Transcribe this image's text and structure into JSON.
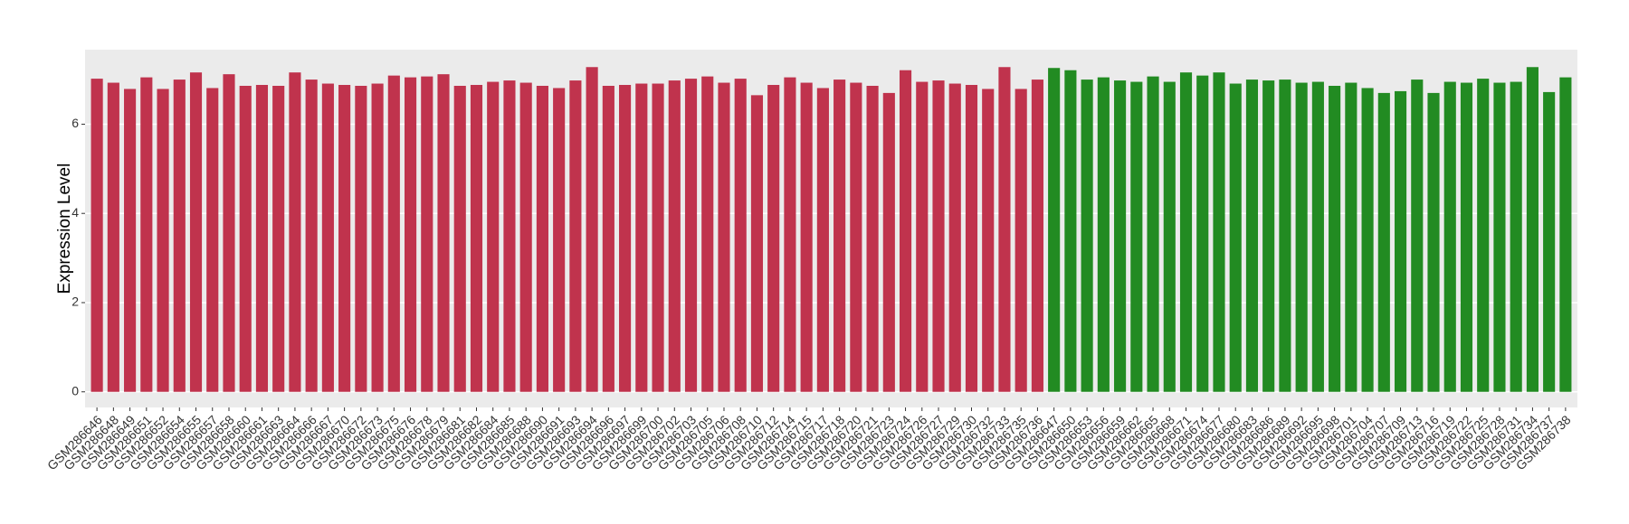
{
  "chart_data": {
    "type": "bar",
    "ylabel": "Expression Level",
    "categories": [
      "GSM286646",
      "GSM286648",
      "GSM286649",
      "GSM286651",
      "GSM286652",
      "GSM286654",
      "GSM286655",
      "GSM286657",
      "GSM286658",
      "GSM286660",
      "GSM286661",
      "GSM286663",
      "GSM286664",
      "GSM286666",
      "GSM286667",
      "GSM286670",
      "GSM286672",
      "GSM286673",
      "GSM286675",
      "GSM286676",
      "GSM286678",
      "GSM286679",
      "GSM286681",
      "GSM286682",
      "GSM286684",
      "GSM286685",
      "GSM286688",
      "GSM286690",
      "GSM286691",
      "GSM286693",
      "GSM286694",
      "GSM286696",
      "GSM286697",
      "GSM286699",
      "GSM286700",
      "GSM286702",
      "GSM286703",
      "GSM286705",
      "GSM286706",
      "GSM286708",
      "GSM286710",
      "GSM286712",
      "GSM286714",
      "GSM286715",
      "GSM286717",
      "GSM286718",
      "GSM286720",
      "GSM286721",
      "GSM286723",
      "GSM286724",
      "GSM286726",
      "GSM286727",
      "GSM286729",
      "GSM286730",
      "GSM286732",
      "GSM286733",
      "GSM286735",
      "GSM286736",
      "GSM286647",
      "GSM286650",
      "GSM286653",
      "GSM286656",
      "GSM286659",
      "GSM286662",
      "GSM286665",
      "GSM286668",
      "GSM286671",
      "GSM286674",
      "GSM286677",
      "GSM286680",
      "GSM286683",
      "GSM286686",
      "GSM286689",
      "GSM286692",
      "GSM286695",
      "GSM286698",
      "GSM286701",
      "GSM286704",
      "GSM286707",
      "GSM286709",
      "GSM286713",
      "GSM286716",
      "GSM286719",
      "GSM286722",
      "GSM286725",
      "GSM286728",
      "GSM286731",
      "GSM286734",
      "GSM286737",
      "GSM286738"
    ],
    "values": [
      7.02,
      6.93,
      6.79,
      7.05,
      6.79,
      7.0,
      7.16,
      6.81,
      7.12,
      6.86,
      6.88,
      6.86,
      7.16,
      7.0,
      6.91,
      6.88,
      6.86,
      6.91,
      7.09,
      7.05,
      7.07,
      7.12,
      6.86,
      6.88,
      6.95,
      6.98,
      6.93,
      6.86,
      6.81,
      6.98,
      7.28,
      6.86,
      6.88,
      6.91,
      6.91,
      6.98,
      7.02,
      7.07,
      6.93,
      7.02,
      6.65,
      6.88,
      7.05,
      6.93,
      6.81,
      7.0,
      6.93,
      6.86,
      6.7,
      7.21,
      6.95,
      6.98,
      6.91,
      6.88,
      6.79,
      7.28,
      6.79,
      7.0,
      7.26,
      7.21,
      7.0,
      7.05,
      6.98,
      6.95,
      7.07,
      6.95,
      7.16,
      7.09,
      7.16,
      6.91,
      7.0,
      6.98,
      7.0,
      6.93,
      6.95,
      6.86,
      6.93,
      6.81,
      6.7,
      6.74,
      7.0,
      6.7,
      6.95,
      6.93,
      7.02,
      6.93,
      6.95,
      7.28,
      6.72,
      7.05
    ],
    "colors": [
      "#c0334d",
      "#c0334d",
      "#c0334d",
      "#c0334d",
      "#c0334d",
      "#c0334d",
      "#c0334d",
      "#c0334d",
      "#c0334d",
      "#c0334d",
      "#c0334d",
      "#c0334d",
      "#c0334d",
      "#c0334d",
      "#c0334d",
      "#c0334d",
      "#c0334d",
      "#c0334d",
      "#c0334d",
      "#c0334d",
      "#c0334d",
      "#c0334d",
      "#c0334d",
      "#c0334d",
      "#c0334d",
      "#c0334d",
      "#c0334d",
      "#c0334d",
      "#c0334d",
      "#c0334d",
      "#c0334d",
      "#c0334d",
      "#c0334d",
      "#c0334d",
      "#c0334d",
      "#c0334d",
      "#c0334d",
      "#c0334d",
      "#c0334d",
      "#c0334d",
      "#c0334d",
      "#c0334d",
      "#c0334d",
      "#c0334d",
      "#c0334d",
      "#c0334d",
      "#c0334d",
      "#c0334d",
      "#c0334d",
      "#c0334d",
      "#c0334d",
      "#c0334d",
      "#c0334d",
      "#c0334d",
      "#c0334d",
      "#c0334d",
      "#c0334d",
      "#c0334d",
      "#228b22",
      "#228b22",
      "#228b22",
      "#228b22",
      "#228b22",
      "#228b22",
      "#228b22",
      "#228b22",
      "#228b22",
      "#228b22",
      "#228b22",
      "#228b22",
      "#228b22",
      "#228b22",
      "#228b22",
      "#228b22",
      "#228b22",
      "#228b22",
      "#228b22",
      "#228b22",
      "#228b22",
      "#228b22",
      "#228b22",
      "#228b22",
      "#228b22",
      "#228b22",
      "#228b22",
      "#228b22",
      "#228b22",
      "#228b22",
      "#228b22",
      "#228b22"
    ],
    "ylim": [
      -0.35,
      7.67
    ],
    "yticks": [
      0,
      2,
      4,
      6
    ],
    "grid": true
  }
}
